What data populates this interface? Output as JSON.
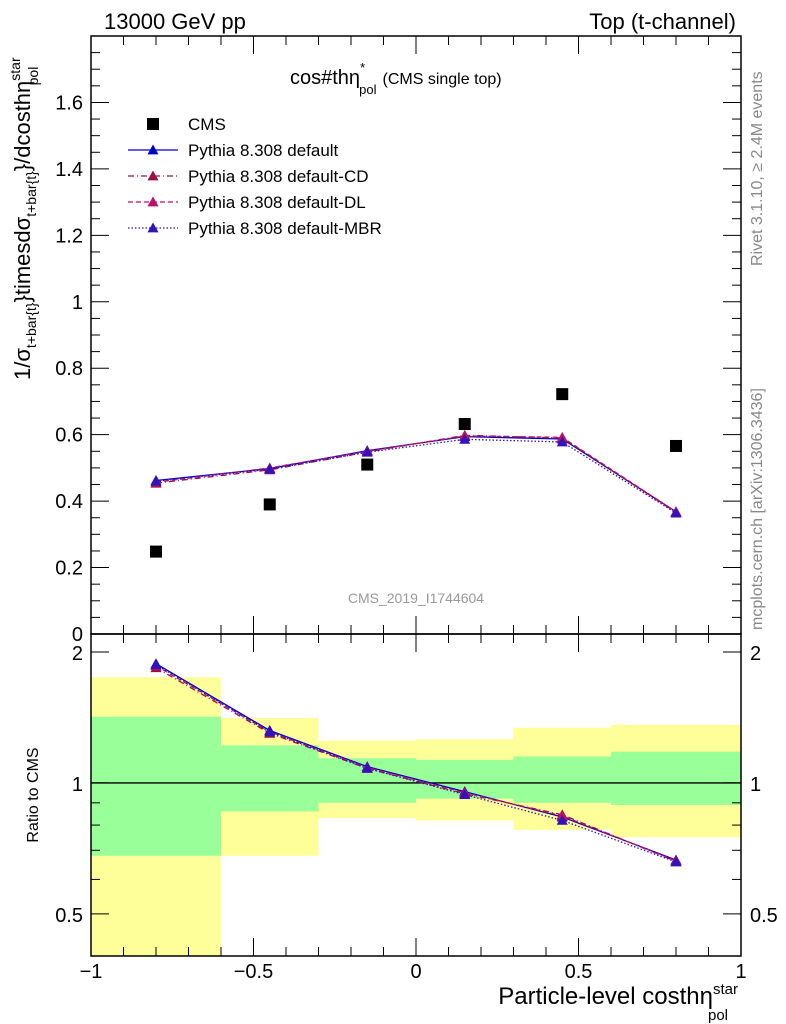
{
  "header": {
    "left": "13000 GeV pp",
    "right": "Top (t-channel)"
  },
  "side_labels": {
    "rivet": "Rivet 3.1.10, ≥ 2.4M events",
    "mcplots": "mcplots.cern.ch [arXiv:1306.3436]"
  },
  "chart_data": [
    {
      "type": "line",
      "panel": "main",
      "title": "cos#thη*pol (CMS single top)",
      "title_main": "cos#thη",
      "title_sup": "*",
      "title_sub": "pol",
      "title_rest": "(CMS single top)",
      "ylabel": "1/σt+bar{t}}timesdσt+bar{t}}/dcosthηstarpol",
      "ylim": [
        0,
        1.8
      ],
      "yticks": [
        0,
        0.2,
        0.4,
        0.6,
        0.8,
        1,
        1.2,
        1.4,
        1.6
      ],
      "ytick_labels": [
        "0",
        "0.2",
        "0.4",
        "0.6",
        "0.8",
        "1",
        "1.2",
        "1.4",
        "1.6"
      ],
      "xlim": [
        -1,
        1
      ],
      "watermark": "CMS_2019_I1744604",
      "legend_position": "top-left",
      "x": [
        -0.8,
        -0.45,
        -0.15,
        0.15,
        0.45,
        0.8
      ],
      "series": [
        {
          "name": "CMS",
          "values": [
            0.248,
            0.39,
            0.51,
            0.632,
            0.722,
            0.566
          ],
          "color": "#000000",
          "style": "marker"
        },
        {
          "name": "Pythia 8.308 default",
          "values": [
            0.462,
            0.498,
            0.552,
            0.594,
            0.587,
            0.368
          ],
          "color": "#0000cc",
          "style": "solid"
        },
        {
          "name": "Pythia 8.308 default-CD",
          "values": [
            0.454,
            0.494,
            0.548,
            0.598,
            0.59,
            0.366
          ],
          "color": "#9b1040",
          "style": "dashdot"
        },
        {
          "name": "Pythia 8.308 default-DL",
          "values": [
            0.457,
            0.5,
            0.55,
            0.596,
            0.592,
            0.368
          ],
          "color": "#bb1166",
          "style": "dashed"
        },
        {
          "name": "Pythia 8.308 default-MBR",
          "values": [
            0.46,
            0.496,
            0.547,
            0.586,
            0.578,
            0.364
          ],
          "color": "#3311bb",
          "style": "dotted"
        }
      ]
    },
    {
      "type": "line",
      "panel": "ratio",
      "ylabel": "Ratio to CMS",
      "xlabel": "Particle-level costhηstarpol",
      "xlabel_main": "Particle-level costhη",
      "xlabel_sup": "star",
      "xlabel_sub": "pol",
      "ylim": [
        0.4,
        2.2
      ],
      "ytick_labels": [
        "0.5",
        "1",
        "2"
      ],
      "yticks": [
        0.5,
        1,
        2
      ],
      "xlim": [
        -1,
        1
      ],
      "xticks": [
        -1,
        -0.5,
        0,
        0.5,
        1
      ],
      "xtick_labels": [
        "−1",
        "−0.5",
        "0",
        "0.5",
        "1"
      ],
      "bins": [
        [
          -1,
          -0.6
        ],
        [
          -0.6,
          -0.3
        ],
        [
          -0.3,
          0
        ],
        [
          0,
          0.3
        ],
        [
          0.3,
          0.6
        ],
        [
          0.6,
          1
        ]
      ],
      "band_inner": [
        [
          0.68,
          1.42
        ],
        [
          0.86,
          1.22
        ],
        [
          0.9,
          1.14
        ],
        [
          0.92,
          1.13
        ],
        [
          0.9,
          1.15
        ],
        [
          0.89,
          1.18
        ]
      ],
      "band_outer": [
        [
          0.3,
          1.75
        ],
        [
          0.68,
          1.41
        ],
        [
          0.83,
          1.25
        ],
        [
          0.82,
          1.26
        ],
        [
          0.78,
          1.34
        ],
        [
          0.75,
          1.36
        ]
      ],
      "band_inner_color": "#99ff99",
      "band_outer_color": "#ffff99",
      "x": [
        -0.8,
        -0.45,
        -0.15,
        0.15,
        0.45,
        0.8
      ],
      "series": [
        {
          "name": "Pythia 8.308 default",
          "values": [
            1.88,
            1.32,
            1.09,
            0.955,
            0.835,
            0.665
          ],
          "color": "#0000cc",
          "style": "solid"
        },
        {
          "name": "Pythia 8.308 default-CD",
          "values": [
            1.84,
            1.3,
            1.08,
            0.945,
            0.845,
            0.66
          ],
          "color": "#9b1040",
          "style": "dashdot"
        },
        {
          "name": "Pythia 8.308 default-DL",
          "values": [
            1.86,
            1.31,
            1.085,
            0.95,
            0.84,
            0.662
          ],
          "color": "#bb1166",
          "style": "dashed"
        },
        {
          "name": "Pythia 8.308 default-MBR",
          "values": [
            1.87,
            1.31,
            1.08,
            0.94,
            0.82,
            0.658
          ],
          "color": "#3311bb",
          "style": "dotted"
        }
      ]
    }
  ]
}
